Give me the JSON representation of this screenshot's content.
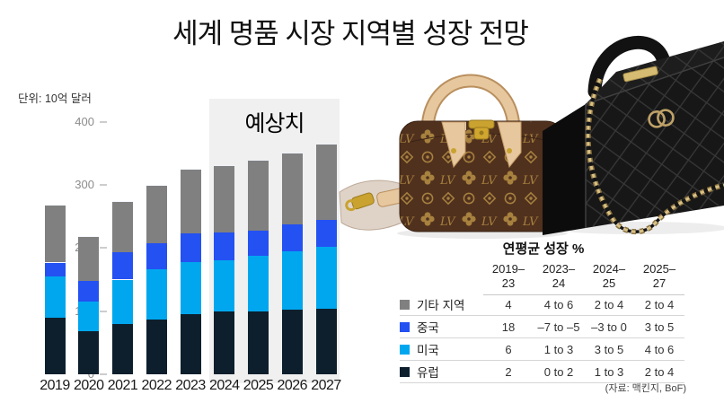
{
  "title": "세계 명품 시장 지역별 성장 전망",
  "chart": {
    "unit_label": "단위: 10억 달러",
    "forecast_label": "예상치",
    "y_ticks": [
      0,
      100,
      200,
      300,
      400
    ]
  },
  "chart_data": {
    "type": "bar",
    "stacked": true,
    "title": "세계 명품 시장 지역별 성장 전망",
    "ylabel": "단위: 10억 달러",
    "ylim": [
      0,
      400
    ],
    "grid": false,
    "annotation": "예상치",
    "forecast_categories": [
      "2024",
      "2025",
      "2026",
      "2027"
    ],
    "categories": [
      "2019",
      "2020",
      "2021",
      "2022",
      "2023",
      "2024",
      "2025",
      "2026",
      "2027"
    ],
    "series": [
      {
        "name": "유럽",
        "color": "#0d1f2d",
        "values": [
          90,
          68,
          80,
          87,
          95,
          99,
          100,
          102,
          104
        ]
      },
      {
        "name": "미국",
        "color": "#00a7ef",
        "values": [
          65,
          47,
          70,
          80,
          83,
          82,
          88,
          93,
          98
        ]
      },
      {
        "name": "중국",
        "color": "#2451f2",
        "values": [
          22,
          33,
          43,
          40,
          45,
          43,
          40,
          42,
          43
        ]
      },
      {
        "name": "기타 지역",
        "color": "#808080",
        "values": [
          90,
          70,
          80,
          91,
          101,
          106,
          110,
          113,
          119
        ]
      }
    ],
    "totals": [
      267,
      218,
      273,
      298,
      324,
      330,
      338,
      350,
      364
    ]
  },
  "table": {
    "title": "연평균 성장 %",
    "columns": [
      "2019–\n23",
      "2023–\n24",
      "2024–\n25",
      "2025–\n27"
    ],
    "rows": [
      {
        "label": "기타 지역",
        "color": "#808080",
        "values": [
          "4",
          "4 to 6",
          "2 to 4",
          "2 to 4"
        ]
      },
      {
        "label": "중국",
        "color": "#2451f2",
        "values": [
          "18",
          "–7 to –5",
          "–3 to 0",
          "3 to 5"
        ]
      },
      {
        "label": "미국",
        "color": "#00a7ef",
        "values": [
          "6",
          "1 to 3",
          "3 to 5",
          "4 to 6"
        ]
      },
      {
        "label": "유럽",
        "color": "#0d1f2d",
        "values": [
          "2",
          "0 to 2",
          "1 to 3",
          "2 to 4"
        ]
      }
    ],
    "source": "(자료: 맥킨지, BoF)"
  },
  "images": {
    "lv_bag_alt": "louis-vuitton-monogram-speedy-handbag",
    "chanel_bag_alt": "chanel-black-quilted-box-bag-with-gold-chain"
  }
}
